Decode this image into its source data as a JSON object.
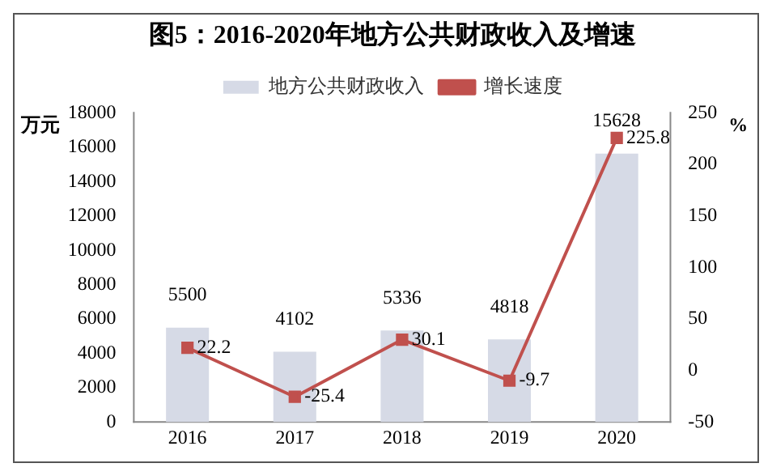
{
  "chart_data": {
    "type": "bar",
    "title": "图5：2016-2020年地方公共财政收入及增速",
    "categories": [
      "2016",
      "2017",
      "2018",
      "2019",
      "2020"
    ],
    "series": [
      {
        "name": "地方公共财政收入",
        "color": "#d6dae6",
        "values": [
          5500,
          4102,
          5336,
          4818,
          15628
        ]
      },
      {
        "name": "增长速度",
        "type": "line",
        "axis": "y2",
        "color": "#c0504d",
        "marker": "square",
        "values": [
          22.2,
          -25.4,
          30.1,
          -9.7,
          225.8
        ]
      }
    ],
    "ylabel": "万元",
    "y2label": "%",
    "ylim": [
      0,
      18000
    ],
    "yticks": [
      0,
      2000,
      4000,
      6000,
      8000,
      10000,
      12000,
      14000,
      16000,
      18000
    ],
    "y2lim": [
      -50,
      250
    ],
    "y2ticks": [
      -50,
      0,
      50,
      100,
      150,
      200,
      250
    ],
    "legend": "top",
    "grid": false,
    "data_labels": true
  }
}
